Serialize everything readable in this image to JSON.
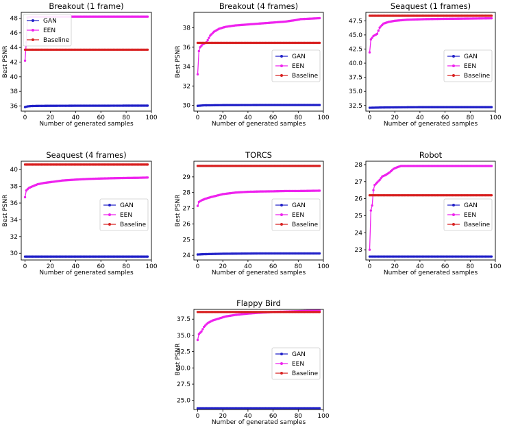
{
  "chart_data": [
    {
      "type": "line",
      "title": "Breakout (1 frame)",
      "xlabel": "Number of generated samples",
      "ylabel": "Best PSNR",
      "xlim": [
        -3,
        100
      ],
      "ylim": [
        35.3,
        48.8
      ],
      "xticks": [
        0,
        20,
        40,
        60,
        80,
        100
      ],
      "yticks": [
        36,
        38,
        40,
        42,
        44,
        46,
        48
      ],
      "ytick_labels": [
        "36",
        "38",
        "40",
        "42",
        "44",
        "46",
        "48"
      ],
      "legend_position": "upper-left",
      "series": [
        {
          "name": "GAN",
          "color": "#2020c8",
          "points": [
            [
              0,
              35.85
            ],
            [
              2,
              35.95
            ],
            [
              5,
              36.0
            ],
            [
              10,
              36.02
            ],
            [
              20,
              36.03
            ],
            [
              40,
              36.04
            ],
            [
              60,
              36.04
            ],
            [
              80,
              36.05
            ],
            [
              97,
              36.05
            ]
          ]
        },
        {
          "name": "EEN",
          "color": "#ee22ee",
          "points": [
            [
              0,
              42.2
            ],
            [
              1,
              44.7
            ],
            [
              2,
              48.1
            ],
            [
              5,
              48.2
            ],
            [
              20,
              48.2
            ],
            [
              40,
              48.22
            ],
            [
              60,
              48.22
            ],
            [
              80,
              48.22
            ],
            [
              97,
              48.22
            ]
          ]
        },
        {
          "name": "Baseline",
          "color": "#d82020",
          "points": [
            [
              0,
              43.7
            ],
            [
              97,
              43.7
            ]
          ]
        }
      ]
    },
    {
      "type": "line",
      "title": "Breakout (4 frames)",
      "xlabel": "Number of generated samples",
      "ylabel": "Best PSNR",
      "xlim": [
        -3,
        100
      ],
      "ylim": [
        29.4,
        39.6
      ],
      "xticks": [
        0,
        20,
        40,
        60,
        80,
        100
      ],
      "yticks": [
        30,
        32,
        34,
        36,
        38
      ],
      "ytick_labels": [
        "30",
        "32",
        "34",
        "36",
        "38"
      ],
      "legend_position": "center-right",
      "series": [
        {
          "name": "GAN",
          "color": "#2020c8",
          "points": [
            [
              0,
              29.95
            ],
            [
              5,
              30.0
            ],
            [
              20,
              30.02
            ],
            [
              50,
              30.03
            ],
            [
              97,
              30.03
            ]
          ]
        },
        {
          "name": "EEN",
          "color": "#ee22ee",
          "points": [
            [
              0,
              33.2
            ],
            [
              1,
              35.6
            ],
            [
              2,
              36.0
            ],
            [
              4,
              36.3
            ],
            [
              7,
              36.5
            ],
            [
              10,
              37.2
            ],
            [
              13,
              37.6
            ],
            [
              17,
              37.9
            ],
            [
              22,
              38.1
            ],
            [
              30,
              38.25
            ],
            [
              40,
              38.35
            ],
            [
              50,
              38.45
            ],
            [
              60,
              38.55
            ],
            [
              70,
              38.65
            ],
            [
              78,
              38.8
            ],
            [
              82,
              38.9
            ],
            [
              90,
              38.95
            ],
            [
              97,
              39.0
            ]
          ]
        },
        {
          "name": "Baseline",
          "color": "#d82020",
          "points": [
            [
              0,
              36.45
            ],
            [
              97,
              36.45
            ]
          ]
        }
      ]
    },
    {
      "type": "line",
      "title": "Seaquest (1 frames)",
      "xlabel": "Number of generated samples",
      "ylabel": "",
      "xlim": [
        -3,
        100
      ],
      "ylim": [
        31.5,
        49.0
      ],
      "xticks": [
        0,
        20,
        40,
        60,
        80,
        100
      ],
      "yticks": [
        32.5,
        35.0,
        37.5,
        40.0,
        42.5,
        45.0,
        47.5
      ],
      "ytick_labels": [
        "32.5",
        "35.0",
        "37.5",
        "40.0",
        "42.5",
        "45.0",
        "47.5"
      ],
      "legend_position": "center-right",
      "series": [
        {
          "name": "GAN",
          "color": "#2020c8",
          "points": [
            [
              0,
              32.1
            ],
            [
              10,
              32.15
            ],
            [
              40,
              32.2
            ],
            [
              97,
              32.2
            ]
          ]
        },
        {
          "name": "EEN",
          "color": "#ee22ee",
          "points": [
            [
              0,
              41.9
            ],
            [
              1,
              44.2
            ],
            [
              3,
              44.8
            ],
            [
              6,
              45.2
            ],
            [
              8,
              46.3
            ],
            [
              11,
              47.0
            ],
            [
              15,
              47.3
            ],
            [
              20,
              47.5
            ],
            [
              30,
              47.7
            ],
            [
              45,
              47.8
            ],
            [
              60,
              47.85
            ],
            [
              80,
              47.9
            ],
            [
              97,
              47.95
            ]
          ]
        },
        {
          "name": "Baseline",
          "color": "#d82020",
          "points": [
            [
              0,
              48.4
            ],
            [
              97,
              48.4
            ]
          ]
        }
      ]
    },
    {
      "type": "line",
      "title": "Seaquest (4 frames)",
      "xlabel": "Number of generated samples",
      "ylabel": "Best PSNR",
      "xlim": [
        -3,
        100
      ],
      "ylim": [
        29.2,
        41.0
      ],
      "xticks": [
        0,
        20,
        40,
        60,
        80,
        100
      ],
      "yticks": [
        30,
        32,
        34,
        36,
        38,
        40
      ],
      "ytick_labels": [
        "30",
        "32",
        "34",
        "36",
        "38",
        "40"
      ],
      "legend_position": "center-right",
      "series": [
        {
          "name": "GAN",
          "color": "#2020c8",
          "points": [
            [
              0,
              29.6
            ],
            [
              97,
              29.6
            ]
          ]
        },
        {
          "name": "EEN",
          "color": "#ee22ee",
          "points": [
            [
              0,
              36.7
            ],
            [
              1,
              37.5
            ],
            [
              3,
              37.8
            ],
            [
              6,
              38.0
            ],
            [
              10,
              38.25
            ],
            [
              15,
              38.4
            ],
            [
              20,
              38.5
            ],
            [
              30,
              38.7
            ],
            [
              40,
              38.8
            ],
            [
              50,
              38.88
            ],
            [
              60,
              38.93
            ],
            [
              70,
              38.97
            ],
            [
              80,
              39.0
            ],
            [
              90,
              39.02
            ],
            [
              97,
              39.05
            ]
          ]
        },
        {
          "name": "Baseline",
          "color": "#d82020",
          "points": [
            [
              0,
              40.6
            ],
            [
              97,
              40.6
            ]
          ]
        }
      ]
    },
    {
      "type": "line",
      "title": "TORCS",
      "xlabel": "Number of generated samples",
      "ylabel": "Best PSNR",
      "xlim": [
        -3,
        100
      ],
      "ylim": [
        23.7,
        30.0
      ],
      "xticks": [
        0,
        20,
        40,
        60,
        80,
        100
      ],
      "yticks": [
        24,
        25,
        26,
        27,
        28,
        29
      ],
      "ytick_labels": [
        "24",
        "25",
        "26",
        "27",
        "28",
        "29"
      ],
      "legend_position": "center-right",
      "series": [
        {
          "name": "GAN",
          "color": "#2020c8",
          "points": [
            [
              0,
              24.05
            ],
            [
              5,
              24.07
            ],
            [
              20,
              24.1
            ],
            [
              50,
              24.12
            ],
            [
              97,
              24.12
            ]
          ]
        },
        {
          "name": "EEN",
          "color": "#ee22ee",
          "points": [
            [
              0,
              27.15
            ],
            [
              1,
              27.4
            ],
            [
              3,
              27.5
            ],
            [
              6,
              27.6
            ],
            [
              10,
              27.7
            ],
            [
              15,
              27.8
            ],
            [
              20,
              27.9
            ],
            [
              30,
              28.0
            ],
            [
              40,
              28.05
            ],
            [
              50,
              28.07
            ],
            [
              60,
              28.08
            ],
            [
              70,
              28.1
            ],
            [
              80,
              28.1
            ],
            [
              97,
              28.12
            ]
          ]
        },
        {
          "name": "Baseline",
          "color": "#d82020",
          "points": [
            [
              0,
              29.7
            ],
            [
              97,
              29.7
            ]
          ]
        }
      ]
    },
    {
      "type": "line",
      "title": "Robot",
      "xlabel": "Number of generated samples",
      "ylabel": "",
      "xlim": [
        -3,
        100
      ],
      "ylim": [
        22.4,
        28.2
      ],
      "xticks": [
        0,
        20,
        40,
        60,
        80,
        100
      ],
      "yticks": [
        23,
        24,
        25,
        26,
        27,
        28
      ],
      "ytick_labels": [
        "23",
        "24",
        "25",
        "26",
        "27",
        "28"
      ],
      "legend_position": "center-right",
      "series": [
        {
          "name": "GAN",
          "color": "#2020c8",
          "points": [
            [
              0,
              22.6
            ],
            [
              97,
              22.6
            ]
          ]
        },
        {
          "name": "EEN",
          "color": "#ee22ee",
          "points": [
            [
              0,
              23.0
            ],
            [
              1,
              25.3
            ],
            [
              2,
              25.6
            ],
            [
              3,
              26.5
            ],
            [
              4,
              26.8
            ],
            [
              6,
              26.95
            ],
            [
              8,
              27.1
            ],
            [
              10,
              27.3
            ],
            [
              13,
              27.4
            ],
            [
              16,
              27.55
            ],
            [
              19,
              27.75
            ],
            [
              22,
              27.85
            ],
            [
              25,
              27.92
            ],
            [
              40,
              27.92
            ],
            [
              60,
              27.92
            ],
            [
              80,
              27.92
            ],
            [
              97,
              27.92
            ]
          ]
        },
        {
          "name": "Baseline",
          "color": "#d82020",
          "points": [
            [
              0,
              26.2
            ],
            [
              97,
              26.2
            ]
          ]
        }
      ]
    },
    {
      "type": "line",
      "title": "Flappy Bird",
      "xlabel": "Number of generated samples",
      "ylabel": "Best PSNR",
      "xlim": [
        -3,
        100
      ],
      "ylim": [
        23.6,
        39.0
      ],
      "xticks": [
        0,
        20,
        40,
        60,
        80,
        100
      ],
      "yticks": [
        25.0,
        27.5,
        30.0,
        32.5,
        35.0,
        37.5
      ],
      "ytick_labels": [
        "25.0",
        "27.5",
        "30.0",
        "32.5",
        "35.0",
        "37.5"
      ],
      "legend_position": "center-right",
      "series": [
        {
          "name": "GAN",
          "color": "#2020c8",
          "points": [
            [
              0,
              23.8
            ],
            [
              97,
              23.8
            ]
          ]
        },
        {
          "name": "EEN",
          "color": "#ee22ee",
          "points": [
            [
              0,
              34.3
            ],
            [
              1,
              35.2
            ],
            [
              3,
              35.6
            ],
            [
              5,
              36.3
            ],
            [
              8,
              36.9
            ],
            [
              12,
              37.3
            ],
            [
              17,
              37.6
            ],
            [
              22,
              37.9
            ],
            [
              30,
              38.15
            ],
            [
              40,
              38.35
            ],
            [
              50,
              38.5
            ],
            [
              60,
              38.6
            ],
            [
              70,
              38.65
            ],
            [
              80,
              38.72
            ],
            [
              90,
              38.78
            ],
            [
              97,
              38.82
            ]
          ]
        },
        {
          "name": "Baseline",
          "color": "#d82020",
          "points": [
            [
              0,
              38.6
            ],
            [
              97,
              38.6
            ]
          ]
        }
      ]
    }
  ]
}
